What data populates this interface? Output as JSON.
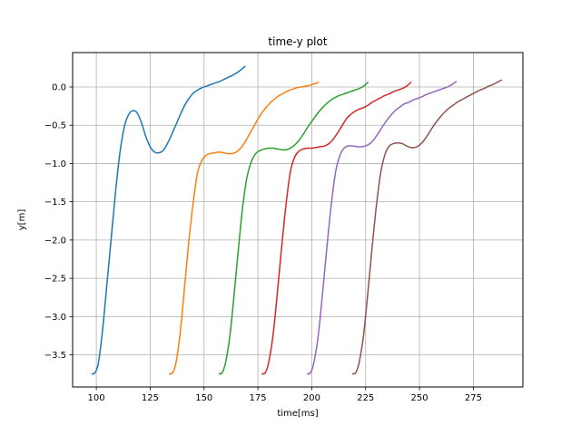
{
  "chart_data": {
    "type": "line",
    "title": "time-y plot",
    "xlabel": "time[ms]",
    "ylabel": "y[m]",
    "xlim": [
      89,
      298
    ],
    "ylim": [
      -3.92,
      0.45
    ],
    "x_ticks": [
      100,
      125,
      150,
      175,
      200,
      225,
      250,
      275
    ],
    "y_ticks": [
      -3.5,
      -3.0,
      -2.5,
      -2.0,
      -1.5,
      -1.0,
      -0.5,
      0.0
    ],
    "x_tick_labels": [
      "100",
      "125",
      "150",
      "175",
      "200",
      "225",
      "250",
      "275"
    ],
    "y_tick_labels": [
      "−3.5",
      "−3.0",
      "−2.5",
      "−2.0",
      "−1.5",
      "−1.0",
      "−0.5",
      "0.0"
    ],
    "grid": true,
    "series": [
      {
        "color": "#1f77b4",
        "x": [
          98,
          99.5,
          101,
          103,
          105,
          107,
          109,
          111,
          113,
          115,
          117,
          119,
          121,
          123,
          125,
          127,
          129,
          131,
          133,
          135,
          137,
          139,
          141,
          143,
          145,
          147,
          149,
          151,
          154,
          157,
          160,
          163,
          166,
          169
        ],
        "y": [
          -3.75,
          -3.73,
          -3.6,
          -3.15,
          -2.55,
          -1.95,
          -1.35,
          -0.85,
          -0.52,
          -0.36,
          -0.31,
          -0.34,
          -0.47,
          -0.65,
          -0.78,
          -0.85,
          -0.86,
          -0.83,
          -0.74,
          -0.62,
          -0.49,
          -0.36,
          -0.24,
          -0.15,
          -0.08,
          -0.04,
          -0.01,
          0.01,
          0.04,
          0.07,
          0.11,
          0.15,
          0.2,
          0.27
        ]
      },
      {
        "color": "#ff7f0e",
        "x": [
          134,
          135.5,
          137,
          139,
          141,
          143,
          145,
          147,
          149,
          151,
          153,
          155,
          157,
          159,
          161,
          163,
          165,
          167,
          169,
          171,
          173,
          175,
          177,
          179,
          181,
          183,
          185,
          187,
          189,
          191,
          193,
          195,
          197,
          199,
          201,
          203
        ],
        "y": [
          -3.75,
          -3.73,
          -3.6,
          -3.2,
          -2.6,
          -2.0,
          -1.5,
          -1.12,
          -0.96,
          -0.89,
          -0.87,
          -0.86,
          -0.85,
          -0.86,
          -0.87,
          -0.87,
          -0.85,
          -0.8,
          -0.72,
          -0.62,
          -0.52,
          -0.42,
          -0.33,
          -0.26,
          -0.2,
          -0.15,
          -0.11,
          -0.08,
          -0.05,
          -0.03,
          -0.01,
          0.0,
          0.01,
          0.02,
          0.04,
          0.06
        ]
      },
      {
        "color": "#2ca02c",
        "x": [
          157,
          158.5,
          160,
          162,
          164,
          166,
          168,
          170,
          172,
          174,
          176,
          178,
          180,
          182,
          184,
          186,
          188,
          190,
          192,
          194,
          196,
          198,
          200,
          202,
          204,
          206,
          208,
          210,
          212,
          214,
          216,
          218,
          220,
          222,
          224,
          226
        ],
        "y": [
          -3.75,
          -3.73,
          -3.6,
          -3.25,
          -2.7,
          -2.1,
          -1.55,
          -1.17,
          -0.97,
          -0.87,
          -0.83,
          -0.81,
          -0.8,
          -0.8,
          -0.81,
          -0.82,
          -0.82,
          -0.8,
          -0.76,
          -0.7,
          -0.62,
          -0.53,
          -0.45,
          -0.37,
          -0.3,
          -0.24,
          -0.19,
          -0.15,
          -0.12,
          -0.1,
          -0.08,
          -0.06,
          -0.04,
          -0.02,
          0.01,
          0.06
        ]
      },
      {
        "color": "#d62728",
        "x": [
          177,
          178.5,
          180,
          182,
          184,
          186,
          188,
          190,
          192,
          194,
          196,
          198,
          200,
          202,
          204,
          206,
          208,
          210,
          212,
          214,
          216,
          218,
          220,
          222,
          224,
          226,
          228,
          230,
          232,
          234,
          236,
          238,
          240,
          242,
          244,
          246
        ],
        "y": [
          -3.75,
          -3.73,
          -3.6,
          -3.25,
          -2.7,
          -2.1,
          -1.55,
          -1.12,
          -0.92,
          -0.84,
          -0.81,
          -0.8,
          -0.8,
          -0.79,
          -0.78,
          -0.77,
          -0.74,
          -0.68,
          -0.6,
          -0.51,
          -0.42,
          -0.36,
          -0.32,
          -0.29,
          -0.27,
          -0.24,
          -0.2,
          -0.17,
          -0.14,
          -0.11,
          -0.09,
          -0.06,
          -0.04,
          -0.02,
          0.01,
          0.06
        ]
      },
      {
        "color": "#9467bd",
        "x": [
          198,
          199.5,
          201,
          203,
          205,
          207,
          209,
          211,
          213,
          215,
          217,
          219,
          221,
          223,
          225,
          227,
          229,
          231,
          233,
          235,
          237,
          239,
          241,
          243,
          245,
          247,
          249,
          251,
          253,
          255,
          257,
          259,
          261,
          263,
          265,
          267
        ],
        "y": [
          -3.75,
          -3.73,
          -3.6,
          -3.25,
          -2.7,
          -2.1,
          -1.55,
          -1.12,
          -0.9,
          -0.8,
          -0.77,
          -0.77,
          -0.78,
          -0.78,
          -0.77,
          -0.74,
          -0.68,
          -0.6,
          -0.51,
          -0.43,
          -0.36,
          -0.3,
          -0.26,
          -0.22,
          -0.2,
          -0.17,
          -0.15,
          -0.13,
          -0.1,
          -0.08,
          -0.06,
          -0.04,
          -0.02,
          0.0,
          0.03,
          0.07
        ]
      },
      {
        "color": "#8c564b",
        "x": [
          219,
          220.5,
          222,
          224,
          226,
          228,
          230,
          232,
          234,
          236,
          238,
          240,
          242,
          244,
          246,
          248,
          250,
          252,
          254,
          256,
          258,
          260,
          262,
          264,
          266,
          268,
          270,
          272,
          274,
          276,
          278,
          280,
          282,
          284,
          286,
          288
        ],
        "y": [
          -3.75,
          -3.73,
          -3.6,
          -3.25,
          -2.7,
          -2.1,
          -1.55,
          -1.12,
          -0.88,
          -0.77,
          -0.74,
          -0.73,
          -0.74,
          -0.77,
          -0.79,
          -0.79,
          -0.76,
          -0.7,
          -0.62,
          -0.53,
          -0.45,
          -0.38,
          -0.32,
          -0.27,
          -0.23,
          -0.19,
          -0.16,
          -0.13,
          -0.1,
          -0.07,
          -0.04,
          -0.02,
          0.01,
          0.03,
          0.06,
          0.09
        ]
      }
    ]
  }
}
